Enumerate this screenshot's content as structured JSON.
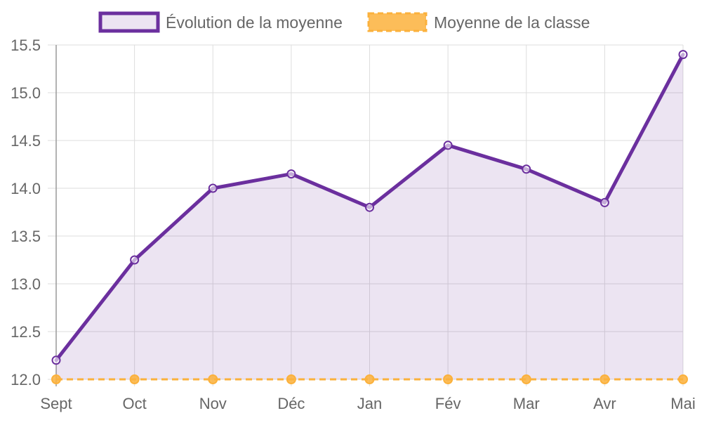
{
  "chart_data": {
    "type": "line",
    "categories": [
      "Sept",
      "Oct",
      "Nov",
      "Déc",
      "Jan",
      "Fév",
      "Mar",
      "Avr",
      "Mai"
    ],
    "series": [
      {
        "name": "Évolution de la moyenne",
        "values": [
          12.2,
          13.25,
          14.0,
          14.15,
          13.8,
          14.45,
          14.2,
          13.85,
          15.4
        ],
        "color": "#6b2f9e",
        "fill": "rgba(107,47,158,0.13)",
        "line_style": "solid"
      },
      {
        "name": "Moyenne de la classe",
        "values": [
          12.0,
          12.0,
          12.0,
          12.0,
          12.0,
          12.0,
          12.0,
          12.0,
          12.0
        ],
        "color": "#fbb13c",
        "fill": "rgba(251,177,60,0.85)",
        "line_style": "dashed"
      }
    ],
    "ylim": [
      12.0,
      15.5
    ],
    "yticks": [
      "12.0",
      "12.5",
      "13.0",
      "13.5",
      "14.0",
      "14.5",
      "15.0",
      "15.5"
    ],
    "grid": true,
    "legend_position": "top-center",
    "title": "",
    "xlabel": "",
    "ylabel": ""
  }
}
